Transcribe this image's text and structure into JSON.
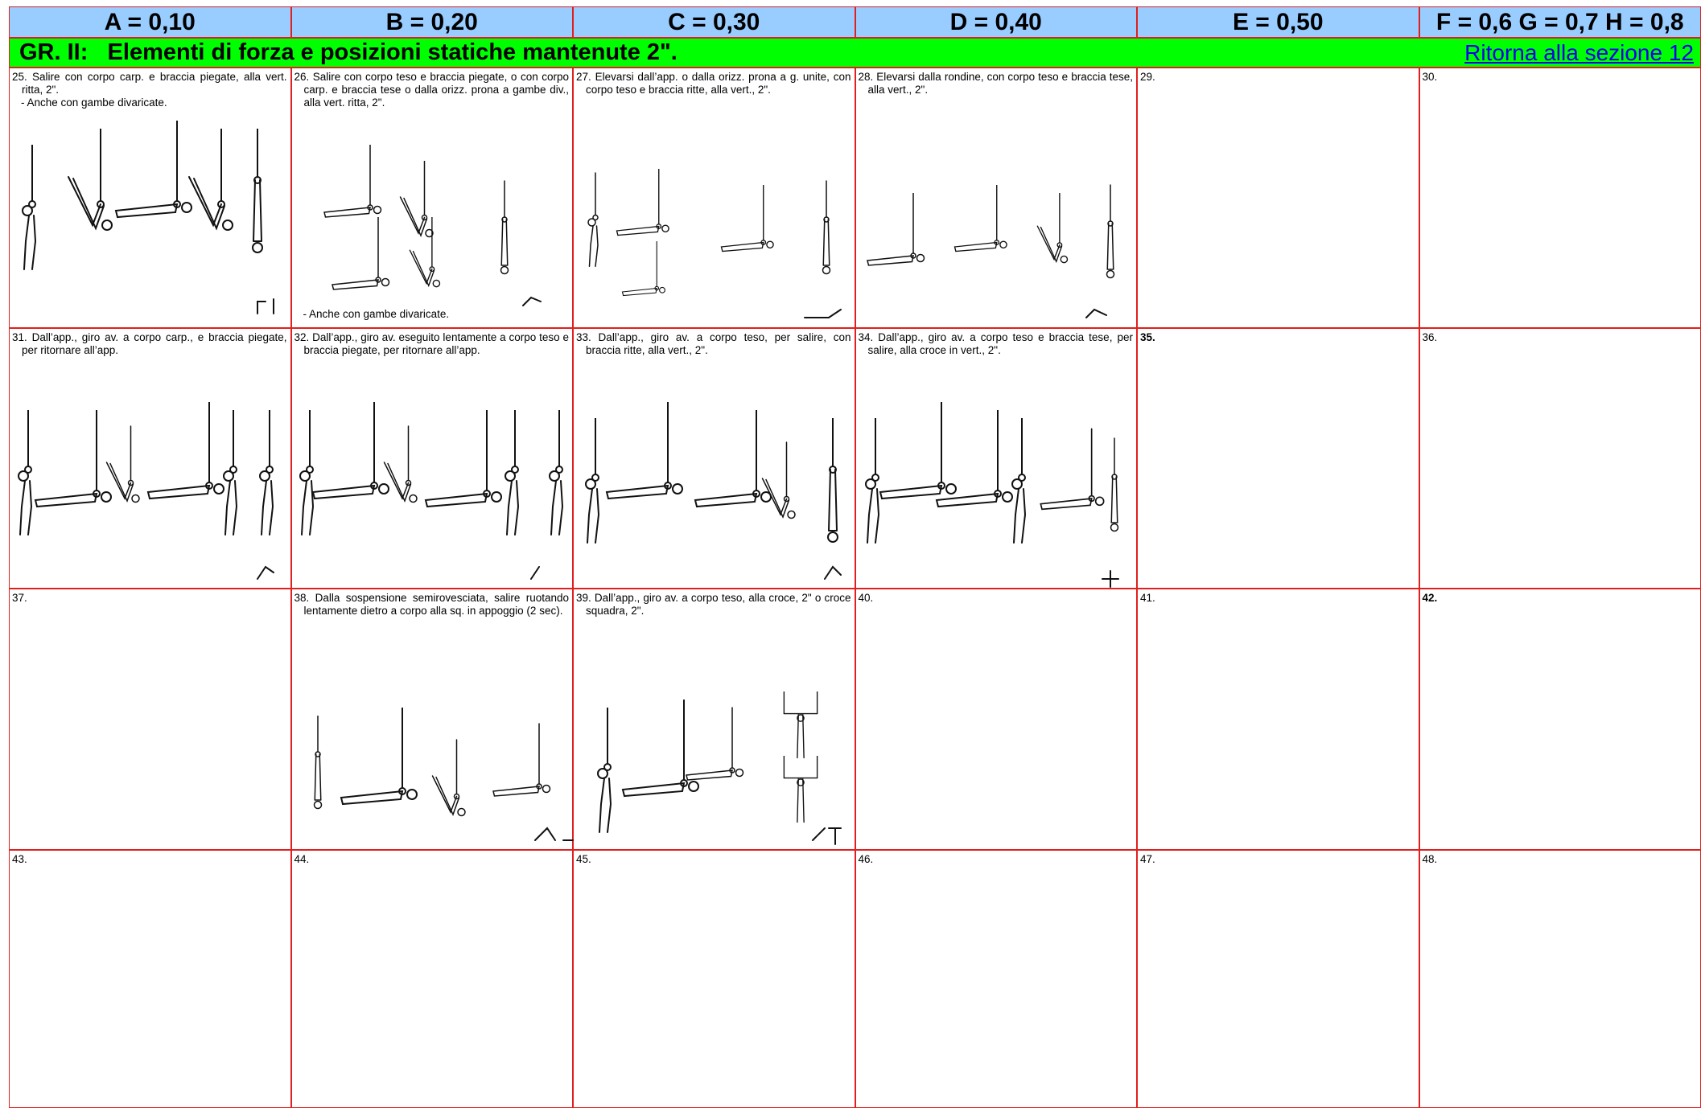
{
  "header": {
    "columns": [
      "A = 0,10",
      "B = 0,20",
      "C = 0,30",
      "D = 0,40",
      "E = 0,50",
      "F = 0,6 G = 0,7 H = 0,8"
    ]
  },
  "group": {
    "title": "GR. II:   Elementi di forza e posizioni statiche mantenute 2\".",
    "link": "Ritorna alla sezione 12"
  },
  "table": {
    "rows": [
      [
        {
          "text": "25. Salire con corpo carp. e braccia piegate, alla vert. ritta, 2\".",
          "note": "-   Anche con gambe divaricate."
        },
        {
          "text": "26. Salire con corpo teso e braccia piegate, o con corpo carp. e braccia tese o dalla orizz. prona a gambe div., alla vert. ritta, 2\".",
          "bottom_note": "-   Anche con gambe divaricate."
        },
        {
          "text": "27. Elevarsi dall’app. o dalla orizz. prona a g. unite, con corpo teso e braccia ritte, alla vert., 2\"."
        },
        {
          "text": "28. Elevarsi dalla rondine, con corpo teso e braccia tese, alla vert., 2\"."
        },
        {
          "text": "29."
        },
        {
          "text": "30."
        }
      ],
      [
        {
          "text": "31. Dall’app., giro av. a corpo carp., e braccia piegate, per ritornare all’app."
        },
        {
          "text": "32. Dall’app., giro av. eseguito lentamente a corpo teso e  braccia piegate, per ritornare all’app."
        },
        {
          "text": "33. Dall’app., giro av. a corpo teso, per salire, con braccia ritte, alla vert., 2\"."
        },
        {
          "text": "34. Dall’app., giro av. a corpo teso e braccia tese, per salire, alla croce in vert., 2\"."
        },
        {
          "text": "35.",
          "bold": true
        },
        {
          "text": "36."
        }
      ],
      [
        {
          "text": "37."
        },
        {
          "text": "38. Dalla sospensione semirovesciata, salire ruotando lentamente dietro a corpo alla sq. in appoggio (2 sec)."
        },
        {
          "text": "39. Dall’app., giro av. a corpo teso, alla croce, 2\" o croce squadra, 2\"."
        },
        {
          "text": "40."
        },
        {
          "text": "41."
        },
        {
          "text": "42.",
          "bold": true
        }
      ],
      [
        {
          "text": "43."
        },
        {
          "text": "44."
        },
        {
          "text": "45."
        },
        {
          "text": "46."
        },
        {
          "text": "47."
        },
        {
          "text": "48."
        }
      ]
    ]
  }
}
